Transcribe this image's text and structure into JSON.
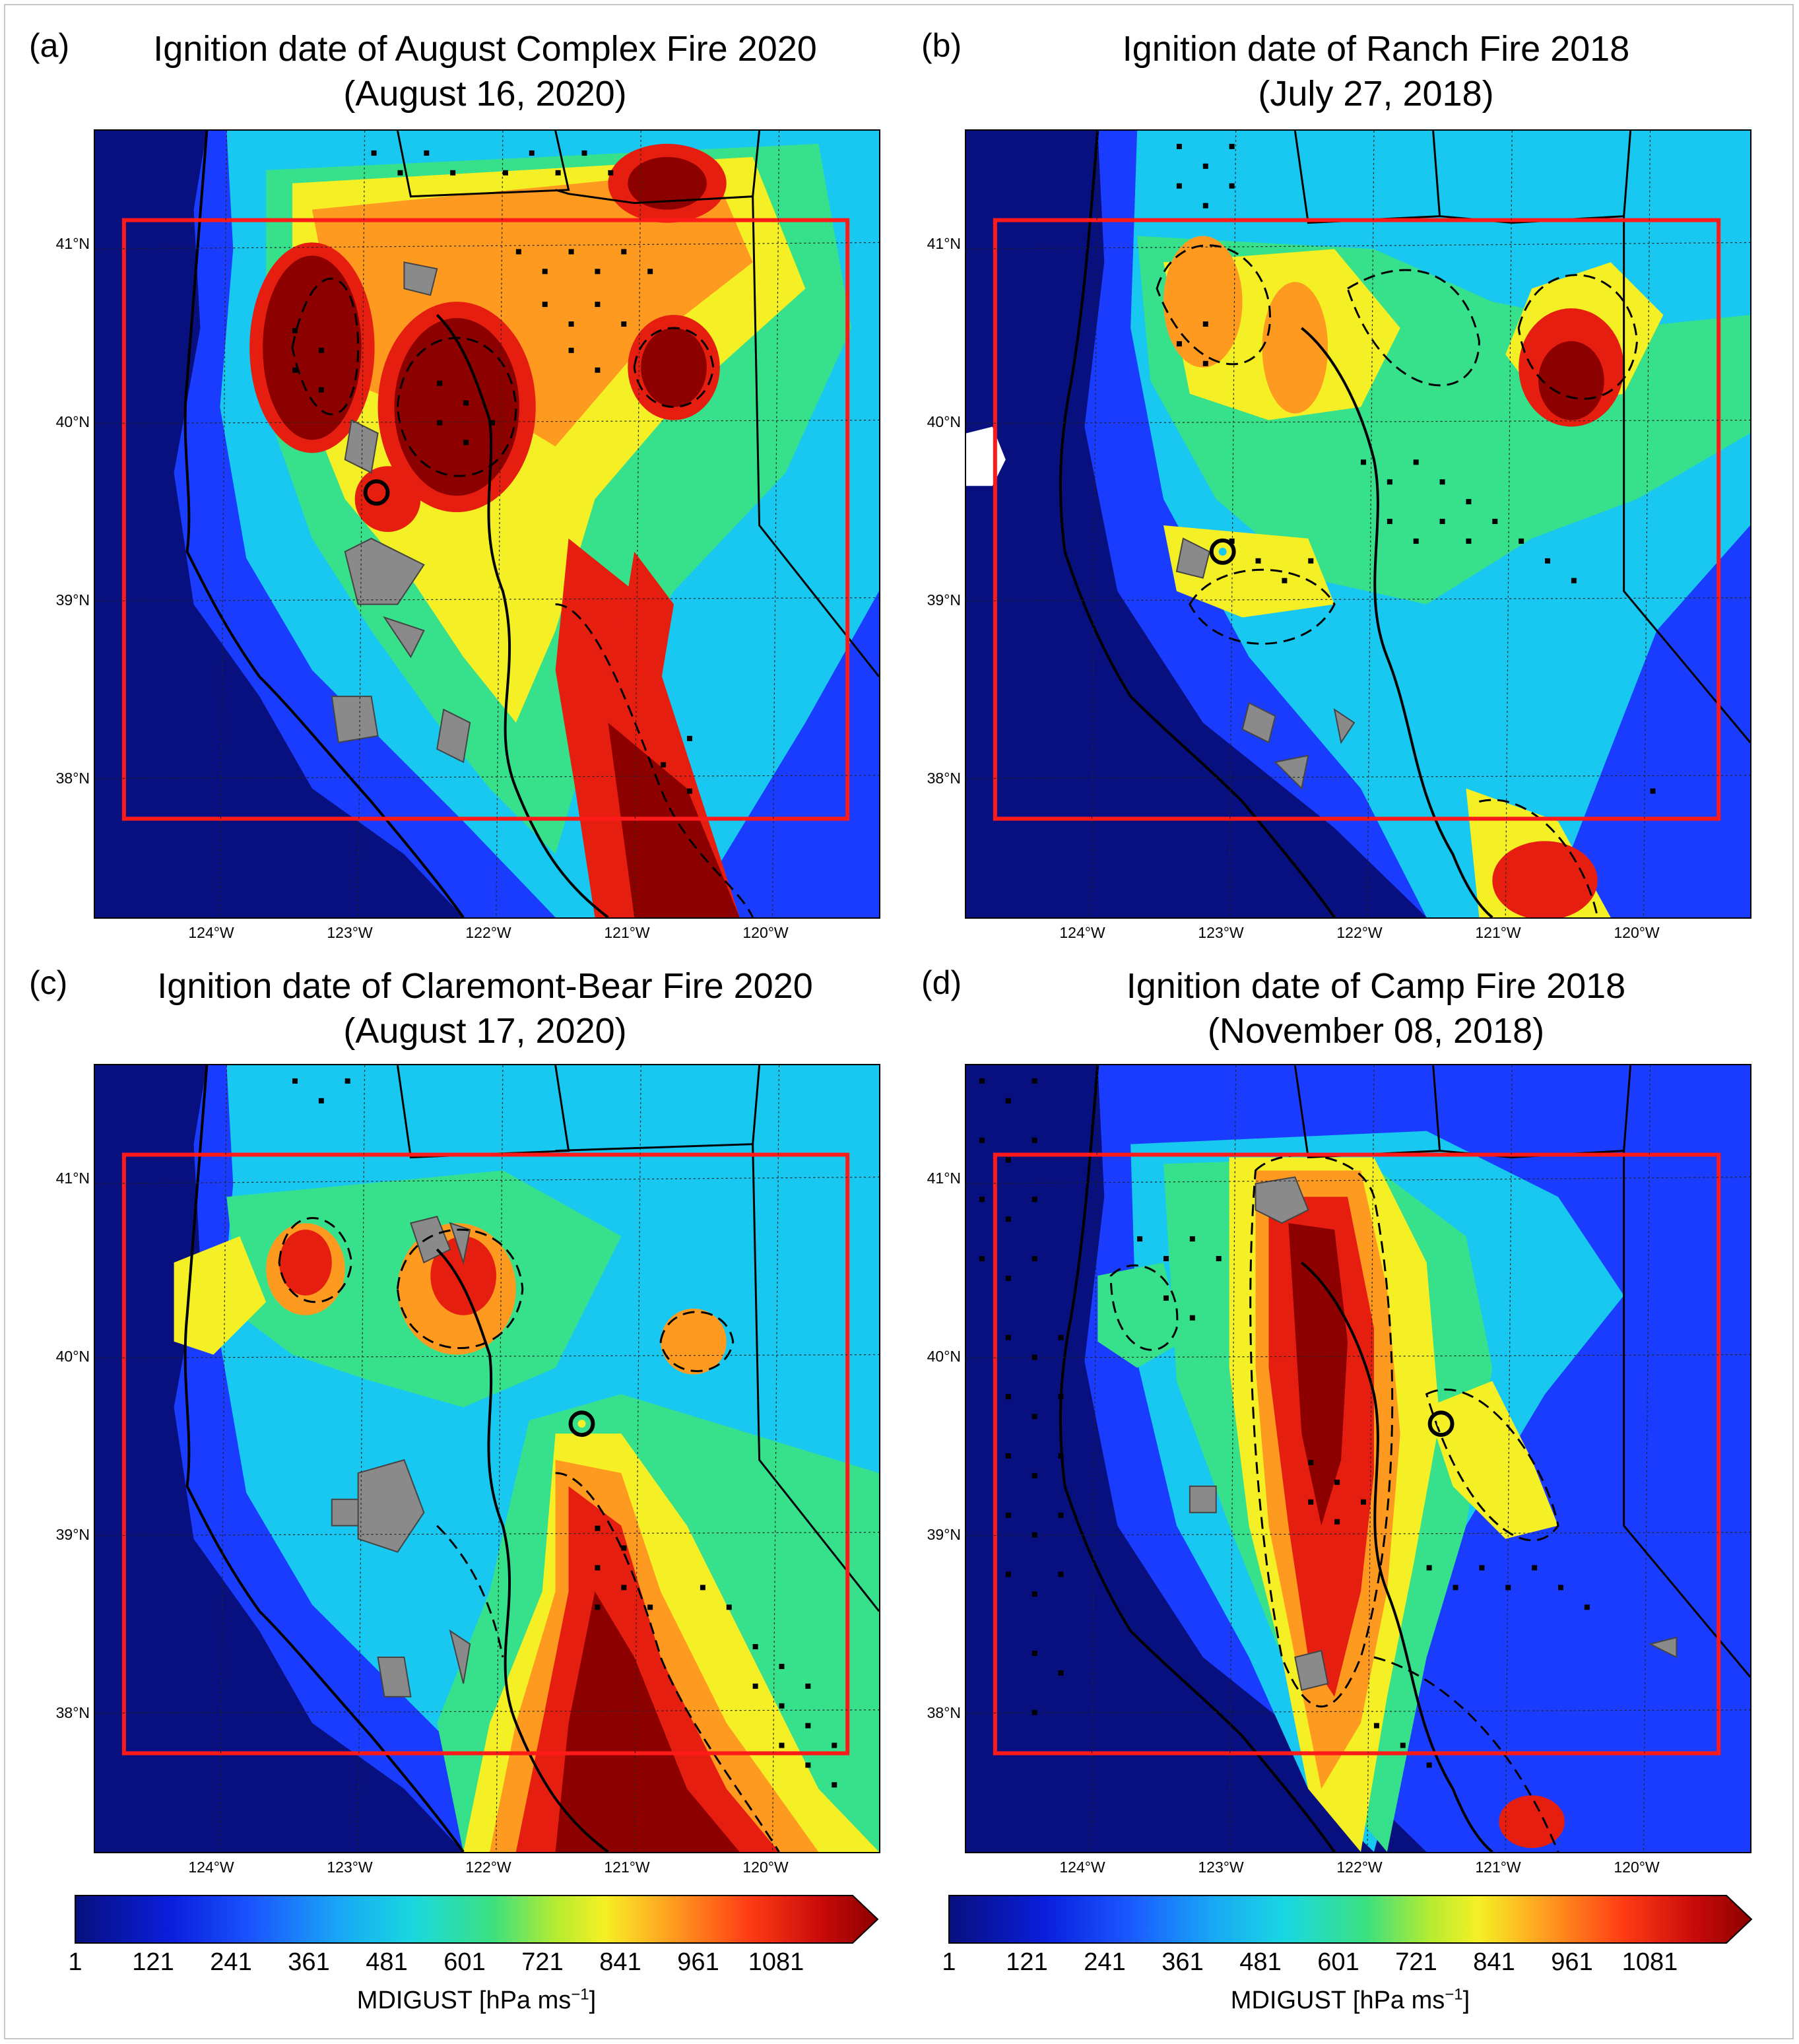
{
  "panels": [
    {
      "letter": "(a)",
      "title": "Ignition date of  August Complex Fire 2020",
      "date": "(August 16, 2020)"
    },
    {
      "letter": "(b)",
      "title": "Ignition date of Ranch Fire 2018",
      "date": "(July 27, 2018)"
    },
    {
      "letter": "(c)",
      "title": "Ignition date of Claremont-Bear Fire 2020",
      "date": "(August 17, 2020)"
    },
    {
      "letter": "(d)",
      "title": "Ignition date of Camp Fire 2018",
      "date": "(November 08, 2018)"
    }
  ],
  "lat_labels": [
    "41°N",
    "40°N",
    "39°N",
    "38°N"
  ],
  "lon_labels": [
    "124°W",
    "123°W",
    "122°W",
    "121°W",
    "120°W"
  ],
  "colorbar": {
    "ticks": [
      "1",
      "121",
      "241",
      "361",
      "481",
      "601",
      "721",
      "841",
      "961",
      "1081"
    ],
    "label_main": "MDIGUST [hPa ms",
    "label_exp": "−1",
    "label_close": "]"
  },
  "colors": {
    "low": "#07107e",
    "blue": "#1a3cff",
    "cyan": "#19c8f0",
    "green": "#37e08a",
    "yellow": "#f5f025",
    "orange": "#ff9a20",
    "red": "#e61e10",
    "darkred": "#8c0000",
    "domain_box": "#ff1a1a",
    "burn_scar": "#8a8a8a"
  },
  "icons": [
    "ignition-point-icon",
    "colorbar-extend-arrow-icon"
  ]
}
